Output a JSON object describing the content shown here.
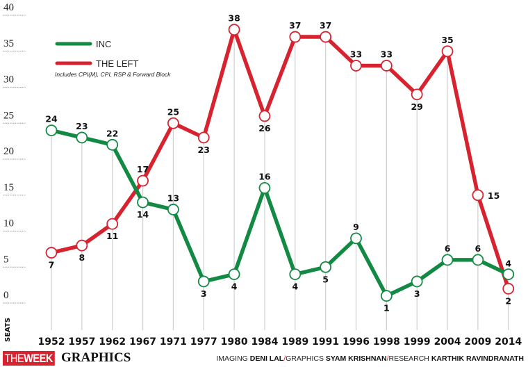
{
  "chart_data": {
    "type": "line",
    "title": "",
    "xlabel": "",
    "ylabel": "SEATS",
    "ylim": [
      0,
      40
    ],
    "yticks": [
      0,
      5,
      10,
      15,
      20,
      25,
      30,
      35,
      40
    ],
    "grid": "horizontal dotted at y-ticks (left stub), vertical lines at each x category",
    "categories": [
      "1952",
      "1957",
      "1962",
      "1967",
      "1971",
      "1977",
      "1980",
      "1984",
      "1989",
      "1991",
      "1996",
      "1998",
      "1999",
      "2004",
      "2009",
      "2014"
    ],
    "series": [
      {
        "name": "INC",
        "color": "#138a43",
        "values": [
          24,
          23,
          22,
          14,
          13,
          3,
          4,
          16,
          4,
          5,
          9,
          1,
          3,
          6,
          6,
          4
        ]
      },
      {
        "name": "THE LEFT",
        "color": "#d7232f",
        "values": [
          7,
          8,
          11,
          17,
          25,
          23,
          38,
          26,
          37,
          37,
          33,
          33,
          29,
          35,
          15,
          2
        ]
      }
    ],
    "legend": {
      "placement": "top-left",
      "entries": [
        "INC",
        "THE LEFT"
      ],
      "note": "Includes CPI(M), CPI, RSP & Forward Block"
    }
  },
  "footer": {
    "logo_the": "THE",
    "logo_week": "WEEK",
    "logo_graphics": "GRAPHICS",
    "credits": [
      {
        "role": "IMAGING",
        "name": "DENI LAL"
      },
      {
        "role": "GRAPHICS",
        "name": "SYAM KRISHNAN"
      },
      {
        "role": "RESEARCH",
        "name": "KARTHIK RAVINDRANATH"
      }
    ],
    "separator": "/"
  }
}
